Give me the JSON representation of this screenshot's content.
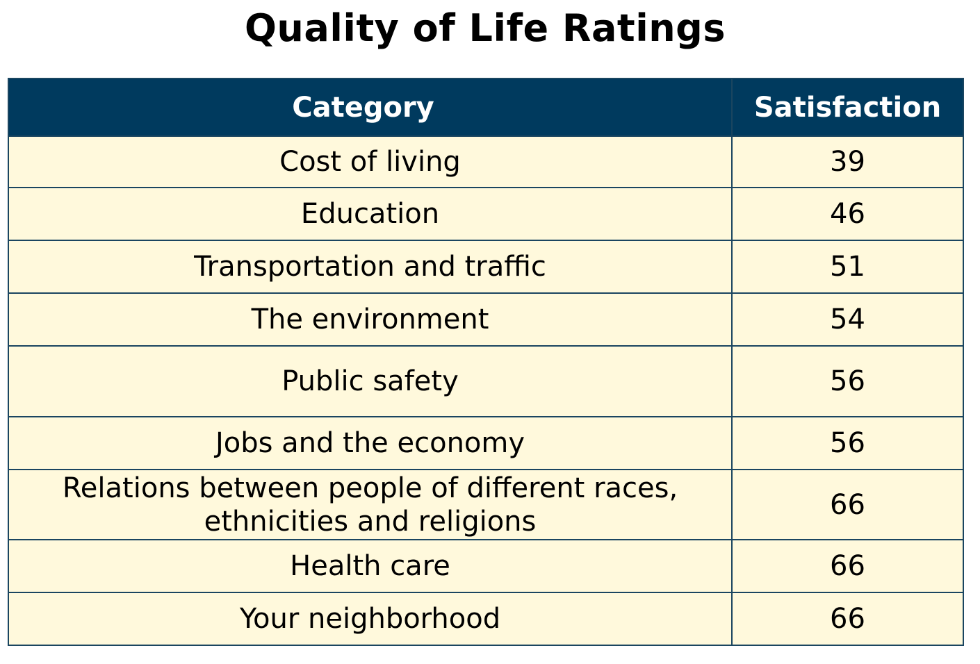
{
  "chart_data": {
    "type": "table",
    "title": "Quality of Life Ratings",
    "columns": [
      "Category",
      "Satisfaction"
    ],
    "rows": [
      {
        "category": "Cost of living",
        "satisfaction": 39
      },
      {
        "category": "Education",
        "satisfaction": 46
      },
      {
        "category": "Transportation and traffic",
        "satisfaction": 51
      },
      {
        "category": "The environment",
        "satisfaction": 54
      },
      {
        "category": "Public safety",
        "satisfaction": 56
      },
      {
        "category": "Jobs and the economy",
        "satisfaction": 56
      },
      {
        "category": "Relations between people of different races,\nethnicities and religions",
        "satisfaction": 66
      },
      {
        "category": "Health care",
        "satisfaction": 66
      },
      {
        "category": "Your neighborhood",
        "satisfaction": 66
      }
    ],
    "colors": {
      "header_background": "#003a5e",
      "header_text": "#ffffff",
      "cell_background": "#fff9dc",
      "border": "#1a4560"
    }
  }
}
